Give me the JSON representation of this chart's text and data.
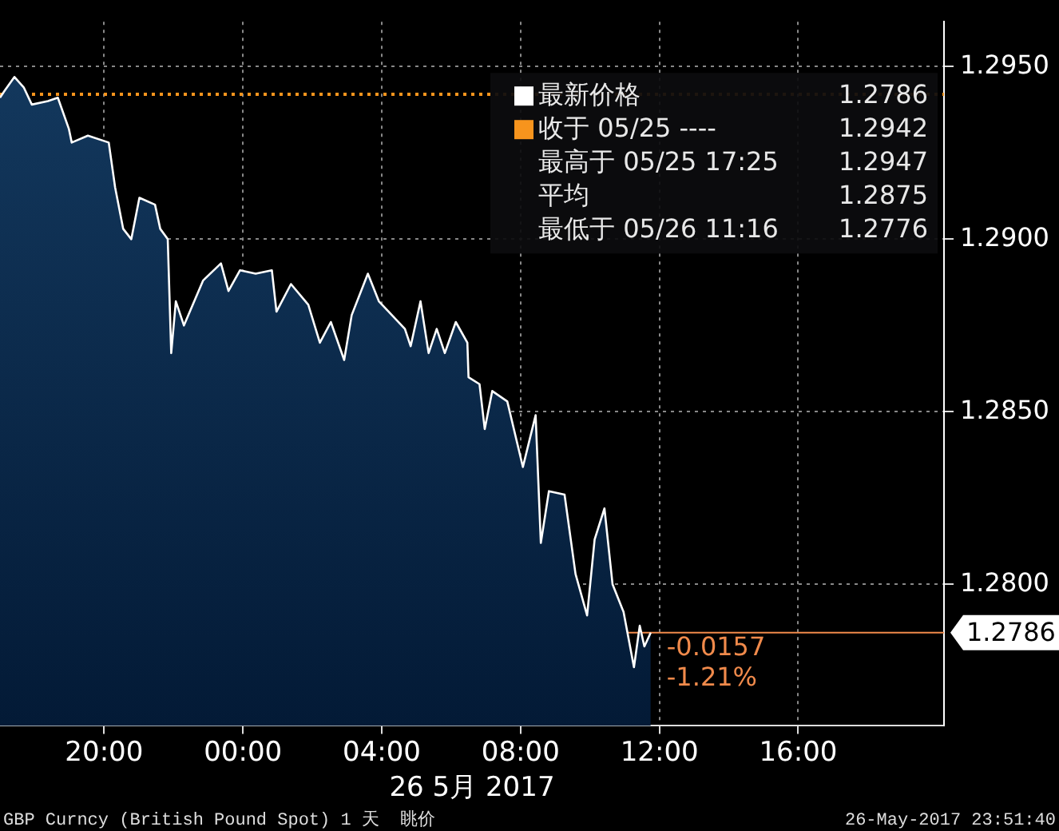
{
  "chart_data": {
    "type": "area",
    "xlabel": "26 5月 2017",
    "x": [
      "2017-05-25T17:00",
      "2017-05-25T17:08",
      "2017-05-25T17:25",
      "2017-05-25T17:41",
      "2017-05-25T17:55",
      "2017-05-25T18:23",
      "2017-05-25T18:40",
      "2017-05-25T18:59",
      "2017-05-25T19:04",
      "2017-05-25T19:32",
      "2017-05-25T20:08",
      "2017-05-25T20:19",
      "2017-05-25T20:33",
      "2017-05-25T20:47",
      "2017-05-25T21:01",
      "2017-05-25T21:28",
      "2017-05-25T21:37",
      "2017-05-25T21:50",
      "2017-05-25T21:56",
      "2017-05-25T22:04",
      "2017-05-25T22:18",
      "2017-05-25T22:51",
      "2017-05-25T23:22",
      "2017-05-25T23:35",
      "2017-05-25T23:55",
      "2017-05-26T00:22",
      "2017-05-26T00:50",
      "2017-05-26T00:58",
      "2017-05-26T01:23",
      "2017-05-26T01:53",
      "2017-05-26T02:13",
      "2017-05-26T02:32",
      "2017-05-26T02:55",
      "2017-05-26T03:08",
      "2017-05-26T03:36",
      "2017-05-26T03:55",
      "2017-05-26T04:12",
      "2017-05-26T04:40",
      "2017-05-26T04:50",
      "2017-05-26T05:07",
      "2017-05-26T05:21",
      "2017-05-26T05:35",
      "2017-05-26T05:49",
      "2017-05-26T06:08",
      "2017-05-26T06:28",
      "2017-05-26T06:30",
      "2017-05-26T06:49",
      "2017-05-26T06:58",
      "2017-05-26T07:11",
      "2017-05-26T07:37",
      "2017-05-26T08:04",
      "2017-05-26T08:26",
      "2017-05-26T08:35",
      "2017-05-26T08:49",
      "2017-05-26T09:16",
      "2017-05-26T09:35",
      "2017-05-26T09:55",
      "2017-05-26T10:08",
      "2017-05-26T10:25",
      "2017-05-26T10:39",
      "2017-05-26T10:58",
      "2017-05-26T11:16",
      "2017-05-26T11:26",
      "2017-05-26T11:34",
      "2017-05-26T11:45"
    ],
    "series": [
      {
        "name": "最新价格",
        "color": "#ffffff",
        "values": [
          1.2941,
          1.2943,
          1.2947,
          1.2944,
          1.2939,
          1.294,
          1.2941,
          1.2932,
          1.2928,
          1.293,
          1.2928,
          1.2915,
          1.2903,
          1.29,
          1.2912,
          1.291,
          1.2903,
          1.29,
          1.2867,
          1.2882,
          1.2875,
          1.2888,
          1.2893,
          1.2885,
          1.2891,
          1.289,
          1.2891,
          1.2879,
          1.2887,
          1.2881,
          1.287,
          1.2876,
          1.2865,
          1.2878,
          1.289,
          1.2882,
          1.2879,
          1.2874,
          1.2869,
          1.2882,
          1.2867,
          1.2874,
          1.2867,
          1.2876,
          1.287,
          1.286,
          1.2858,
          1.2845,
          1.2856,
          1.2853,
          1.2834,
          1.2849,
          1.2812,
          1.2827,
          1.2826,
          1.2803,
          1.2791,
          1.2813,
          1.2822,
          1.28,
          1.2792,
          1.2776,
          1.2788,
          1.2782,
          1.2786
        ]
      }
    ],
    "xlim": [
      "2017-05-25T17:00",
      "2017-05-26T20:12"
    ],
    "xticks": [
      {
        "value": "2017-05-25T20:00",
        "label": "20:00"
      },
      {
        "value": "2017-05-26T00:00",
        "label": "00:00"
      },
      {
        "value": "2017-05-26T04:00",
        "label": "04:00"
      },
      {
        "value": "2017-05-26T08:00",
        "label": "08:00"
      },
      {
        "value": "2017-05-26T12:00",
        "label": "12:00"
      },
      {
        "value": "2017-05-26T16:00",
        "label": "16:00"
      }
    ],
    "ylim": [
      1.2759,
      1.2963
    ],
    "yticks": [
      {
        "value": 1.28,
        "label": "1.2800"
      },
      {
        "value": 1.285,
        "label": "1.2850"
      },
      {
        "value": 1.29,
        "label": "1.2900"
      },
      {
        "value": 1.295,
        "label": "1.2950"
      }
    ],
    "ref_lines": [
      {
        "axis": "y",
        "value": 1.2942,
        "label": "收于 05/25 ----",
        "color": "#f7941d",
        "line_style": "dotted"
      },
      {
        "axis": "y",
        "value": 1.2786,
        "label": "1.2786",
        "color": "#f08a4b",
        "line_style": "solid"
      }
    ],
    "annotations": [
      "1.2786",
      "1.2942",
      "最高于 05/25 17:25 1.2947",
      "平均 1.2875",
      "最低于 05/26 11:16 1.2776",
      "-0.0157",
      "-1.21%",
      "GBP Curncy (British Pound Spot) 1 天  眺价",
      "26-May-2017 23:51:40"
    ],
    "grid": true,
    "legend": "top right"
  }
}
